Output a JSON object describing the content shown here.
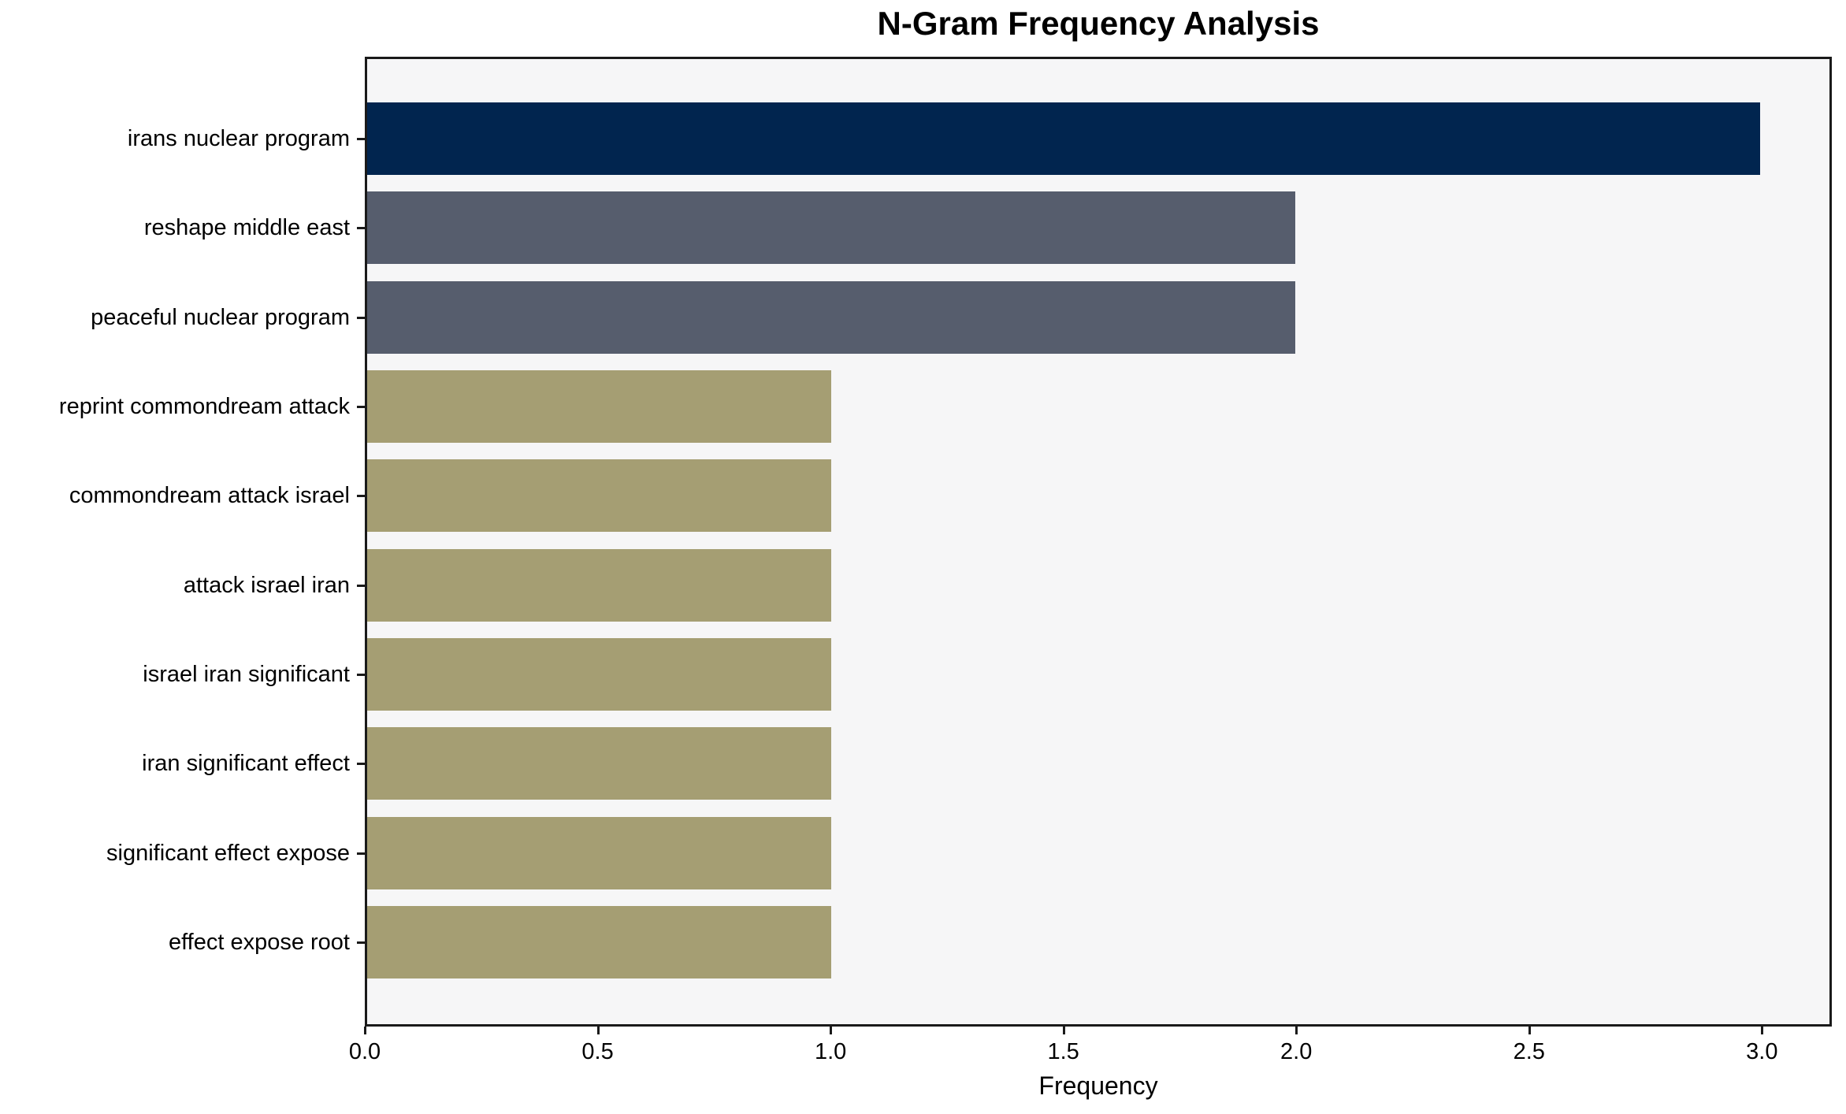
{
  "chart_data": {
    "type": "bar",
    "orientation": "horizontal",
    "title": "N-Gram Frequency Analysis",
    "xlabel": "Frequency",
    "ylabel": "",
    "categories": [
      "irans nuclear program",
      "reshape middle east",
      "peaceful nuclear program",
      "reprint commondream attack",
      "commondream attack israel",
      "attack israel iran",
      "israel iran significant",
      "iran significant effect",
      "significant effect expose",
      "effect expose root"
    ],
    "values": [
      3,
      2,
      2,
      1,
      1,
      1,
      1,
      1,
      1,
      1
    ],
    "bar_colors": [
      "#01254f",
      "#565d6d",
      "#565d6d",
      "#a59e73",
      "#a59e73",
      "#a59e73",
      "#a59e73",
      "#a59e73",
      "#a59e73",
      "#a59e73"
    ],
    "xlim": [
      0,
      3.15
    ],
    "xticks": [
      0.0,
      0.5,
      1.0,
      1.5,
      2.0,
      2.5,
      3.0
    ],
    "xtick_labels": [
      "0.0",
      "0.5",
      "1.0",
      "1.5",
      "2.0",
      "2.5",
      "3.0"
    ],
    "grid": false,
    "legend": null,
    "colors": {
      "plot_background": "#f6f6f7",
      "figure_background": "#ffffff",
      "spine": "#1a1a1a",
      "text": "#000000"
    }
  }
}
